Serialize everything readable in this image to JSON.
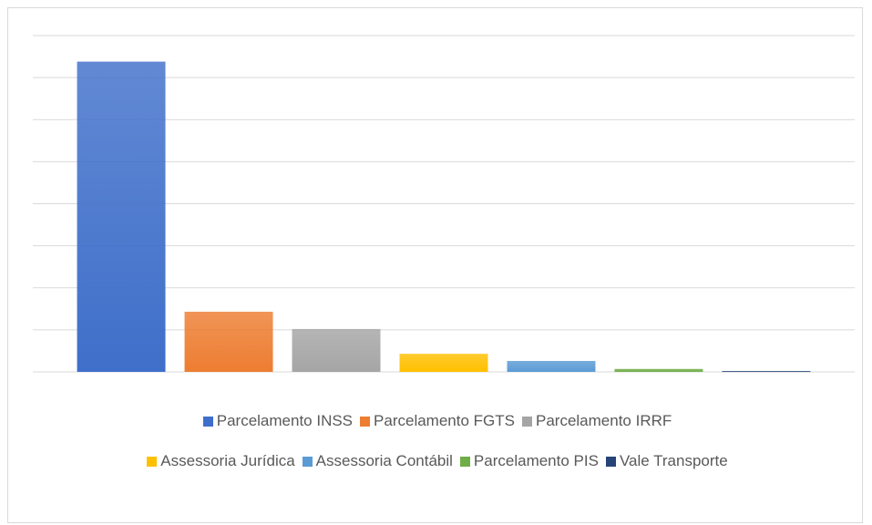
{
  "chart_data": {
    "type": "bar",
    "categories": [
      null
    ],
    "series": [
      {
        "name": "Parcelamento INSS",
        "color": "#3f6fca",
        "values": [
          7.38
        ]
      },
      {
        "name": "Parcelamento FGTS",
        "color": "#ed7d31",
        "values": [
          1.43
        ]
      },
      {
        "name": "Parcelamento IRRF",
        "color": "#a5a5a5",
        "values": [
          1.02
        ]
      },
      {
        "name": "Assessoria Jurídica",
        "color": "#ffc000",
        "values": [
          0.43
        ]
      },
      {
        "name": "Assessoria Contábil",
        "color": "#5b9bd5",
        "values": [
          0.26
        ]
      },
      {
        "name": "Parcelamento PIS",
        "color": "#70ad47",
        "values": [
          0.07
        ]
      },
      {
        "name": "Vale Transporte",
        "color": "#264478",
        "values": [
          0.02
        ]
      }
    ],
    "ylim": [
      0,
      8
    ],
    "yticks": [
      0,
      1,
      2,
      3,
      4,
      5,
      6,
      7,
      8
    ],
    "grid": true,
    "legend": "bottom"
  }
}
